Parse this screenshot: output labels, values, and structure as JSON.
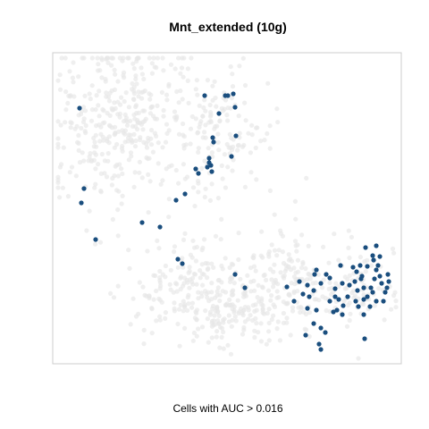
{
  "chart_data": {
    "type": "scatter",
    "title": "Mnt_extended (10g)",
    "caption": "Cells with AUC > 0.016",
    "axes_visible": false,
    "grid": false,
    "xlim": [
      0,
      390
    ],
    "ylim": [
      0,
      348
    ],
    "colors": {
      "background_cells": "#e6e6e6",
      "highlighted_cells": "#1a4e7e",
      "frame": "#cccccc"
    },
    "series": [
      {
        "role": "background",
        "seed": 7,
        "clusters": [
          {
            "cx": 75,
            "cy": 270,
            "sx": 38,
            "sy": 48,
            "n": 360
          },
          {
            "cx": 190,
            "cy": 260,
            "sx": 30,
            "sy": 38,
            "n": 140
          },
          {
            "cx": 160,
            "cy": 80,
            "sx": 40,
            "sy": 28,
            "n": 210
          },
          {
            "cx": 270,
            "cy": 90,
            "sx": 30,
            "sy": 30,
            "n": 150
          },
          {
            "cx": 210,
            "cy": 55,
            "sx": 22,
            "sy": 18,
            "n": 80
          },
          {
            "cx": 345,
            "cy": 85,
            "sx": 20,
            "sy": 26,
            "n": 70
          }
        ]
      },
      {
        "role": "highlighted",
        "points": [
          [
            30,
            286
          ],
          [
            35,
            196
          ],
          [
            32,
            180
          ],
          [
            48,
            139
          ],
          [
            170,
            300
          ],
          [
            193,
            300
          ],
          [
            196,
            300
          ],
          [
            202,
            302
          ],
          [
            204,
            287
          ],
          [
            186,
            280
          ],
          [
            180,
            248
          ],
          [
            205,
            255
          ],
          [
            200,
            232
          ],
          [
            179,
            253
          ],
          [
            175,
            230
          ],
          [
            175,
            225
          ],
          [
            173,
            220
          ],
          [
            178,
            215
          ],
          [
            177,
            222
          ],
          [
            160,
            218
          ],
          [
            163,
            213
          ],
          [
            148,
            190
          ],
          [
            138,
            183
          ],
          [
            100,
            158
          ],
          [
            120,
            153
          ],
          [
            140,
            117
          ],
          [
            145,
            112
          ],
          [
            204,
            100
          ],
          [
            215,
            85
          ],
          [
            283,
            32
          ],
          [
            285,
            88
          ],
          [
            298,
            22
          ],
          [
            300,
            16
          ],
          [
            293,
            100
          ],
          [
            292,
            45
          ],
          [
            305,
            35
          ],
          [
            300,
            40
          ],
          [
            295,
            60
          ],
          [
            350,
            130
          ],
          [
            349,
            28
          ],
          [
            348,
            55
          ],
          [
            348,
            72
          ],
          [
            352,
            75
          ],
          [
            356,
            85
          ],
          [
            355,
            64
          ],
          [
            360,
            95
          ],
          [
            362,
            105
          ],
          [
            366,
            120
          ],
          [
            364,
            110
          ],
          [
            368,
            90
          ],
          [
            372,
            80
          ],
          [
            370,
            70
          ],
          [
            375,
            100
          ],
          [
            376,
            92
          ],
          [
            374,
            85
          ],
          [
            359,
            116
          ],
          [
            362,
            132
          ],
          [
            358,
            121
          ],
          [
            352,
            109
          ],
          [
            344,
            110
          ],
          [
            340,
            103
          ],
          [
            338,
            92
          ],
          [
            341,
            82
          ],
          [
            339,
            70
          ],
          [
            330,
            75
          ],
          [
            332,
            88
          ],
          [
            324,
            90
          ],
          [
            320,
            72
          ],
          [
            325,
            65
          ],
          [
            318,
            60
          ],
          [
            314,
            58
          ],
          [
            310,
            96
          ],
          [
            306,
            100
          ],
          [
            295,
            105
          ],
          [
            300,
            90
          ],
          [
            292,
            82
          ],
          [
            287,
            75
          ],
          [
            285,
            62
          ],
          [
            280,
            78
          ],
          [
            276,
            92
          ],
          [
            270,
            70
          ],
          [
            262,
            86
          ],
          [
            346,
            98
          ],
          [
            348,
            85
          ],
          [
            336,
            108
          ],
          [
            345,
            95
          ],
          [
            324,
            55
          ],
          [
            322,
            110
          ],
          [
            316,
            75
          ],
          [
            310,
            70
          ],
          [
            316,
            84
          ],
          [
            342,
            64
          ],
          [
            358,
            80
          ],
          [
            362,
            70
          ],
          [
            366,
            98
          ]
        ]
      }
    ]
  }
}
